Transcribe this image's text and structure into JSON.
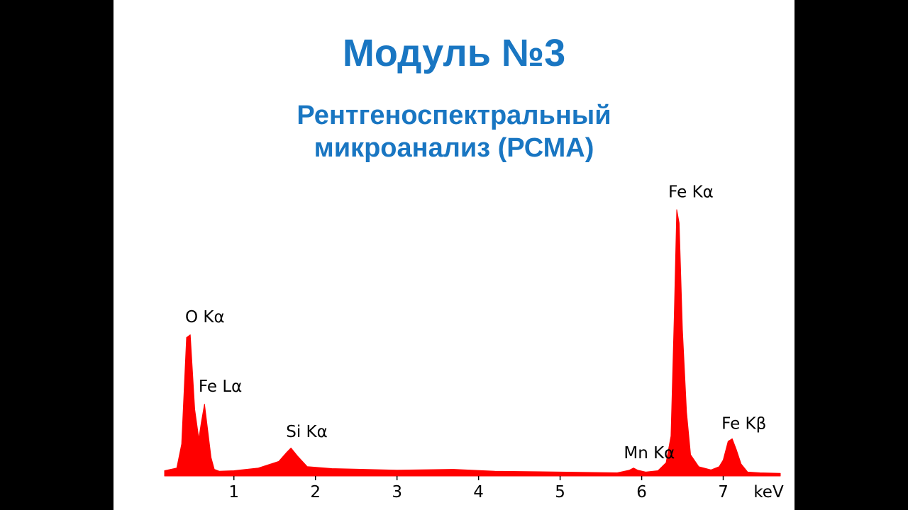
{
  "slide": {
    "title": "Модуль №3",
    "subtitle_lines": [
      "Рентгеноспектральный",
      "микроанализ (РСМА)"
    ]
  },
  "colors": {
    "title": "#1976c2",
    "spectrum_fill": "#ff0000",
    "slide_background": "#ffffff",
    "letterbox": "#000000"
  },
  "chart_data": {
    "type": "area",
    "title": "",
    "xlabel": "keV",
    "ylabel": "",
    "xlim": [
      0.15,
      7.7
    ],
    "ylim": [
      0,
      100
    ],
    "grid": false,
    "x_ticks": [
      1,
      2,
      3,
      4,
      5,
      6,
      7
    ],
    "x_tick_labels": [
      "1",
      "2",
      "3",
      "4",
      "5",
      "6",
      "7"
    ],
    "series": [
      {
        "x": [
          0.15,
          0.3,
          0.36,
          0.42,
          0.465,
          0.52,
          0.57,
          0.6,
          0.64,
          0.68,
          0.72,
          0.76,
          0.82,
          1.0,
          1.3,
          1.55,
          1.65,
          1.7,
          1.78,
          1.9,
          2.2,
          3.0,
          3.7,
          4.2,
          5.0,
          5.7,
          5.85,
          5.9,
          5.95,
          6.05,
          6.2,
          6.3,
          6.36,
          6.4,
          6.43,
          6.46,
          6.5,
          6.55,
          6.6,
          6.7,
          6.85,
          6.95,
          7.0,
          7.06,
          7.11,
          7.16,
          7.22,
          7.3,
          7.45,
          7.7
        ],
        "y": [
          2,
          3,
          12,
          52,
          53,
          25,
          14,
          20,
          27,
          17,
          7,
          2.5,
          1.8,
          2,
          3,
          5.5,
          9,
          10.5,
          7.5,
          3.5,
          2.8,
          2.2,
          2.5,
          1.8,
          1.5,
          1.2,
          2.2,
          3,
          2.2,
          1.5,
          2,
          5,
          15,
          60,
          100,
          95,
          55,
          24,
          8,
          3.5,
          2.3,
          3.5,
          6,
          13,
          14,
          10,
          4.5,
          1.5,
          1.2,
          1
        ]
      }
    ],
    "peak_labels": [
      {
        "text": "O Kα",
        "x": 0.47,
        "y": 55
      },
      {
        "text": "Fe Lα",
        "x": 0.66,
        "y": 29
      },
      {
        "text": "Si Kα",
        "x": 1.72,
        "y": 12
      },
      {
        "text": "Mn Kα",
        "x": 5.92,
        "y": 4
      },
      {
        "text": "Fe Kα",
        "x": 6.43,
        "y": 102
      },
      {
        "text": "Fe Kβ",
        "x": 7.08,
        "y": 15
      }
    ]
  }
}
